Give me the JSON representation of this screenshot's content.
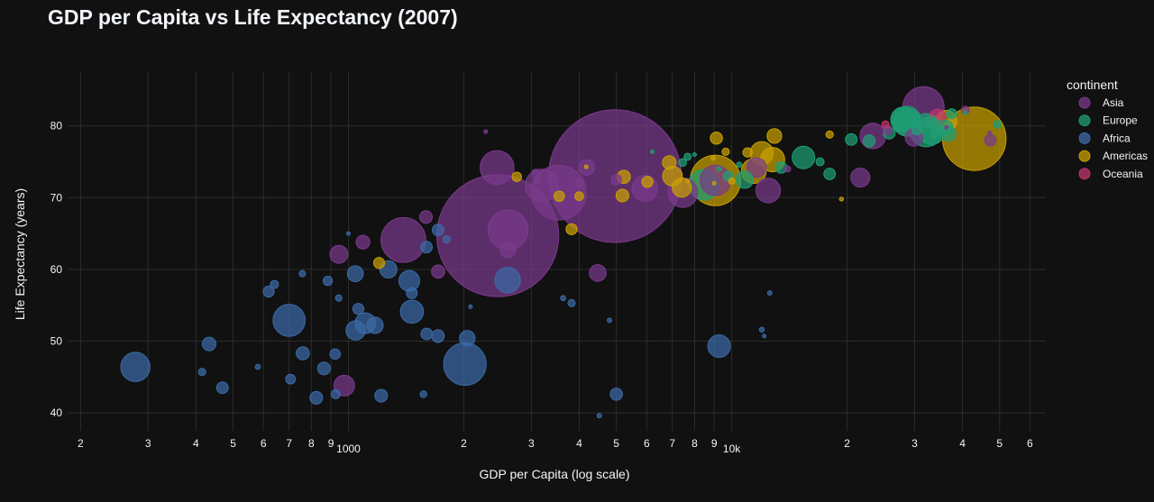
{
  "chart_data": {
    "type": "scatter",
    "subtype": "bubble",
    "title": "GDP per Capita vs Life Expectancy (2007)",
    "xlabel": "GDP per Capita (log scale)",
    "ylabel": "Life Expectancy (years)",
    "xscale": "log",
    "xlim": [
      185,
      66000
    ],
    "ylim": [
      37.5,
      87.5
    ],
    "grid": true,
    "legend_title": "continent",
    "legend_position": "top-right",
    "x_ticks": [
      {
        "value": 200,
        "label": "2"
      },
      {
        "value": 300,
        "label": "3"
      },
      {
        "value": 400,
        "label": "4"
      },
      {
        "value": 500,
        "label": "5"
      },
      {
        "value": 600,
        "label": "6"
      },
      {
        "value": 700,
        "label": "7"
      },
      {
        "value": 800,
        "label": "8"
      },
      {
        "value": 900,
        "label": "9"
      },
      {
        "value": 1000,
        "label": "1000",
        "major": true
      },
      {
        "value": 2000,
        "label": "2"
      },
      {
        "value": 3000,
        "label": "3"
      },
      {
        "value": 4000,
        "label": "4"
      },
      {
        "value": 5000,
        "label": "5"
      },
      {
        "value": 6000,
        "label": "6"
      },
      {
        "value": 7000,
        "label": "7"
      },
      {
        "value": 8000,
        "label": "8"
      },
      {
        "value": 9000,
        "label": "9"
      },
      {
        "value": 10000,
        "label": "10k",
        "major": true
      },
      {
        "value": 20000,
        "label": "2"
      },
      {
        "value": 30000,
        "label": "3"
      },
      {
        "value": 40000,
        "label": "4"
      },
      {
        "value": 50000,
        "label": "5"
      },
      {
        "value": 60000,
        "label": "6"
      }
    ],
    "y_ticks": [
      40,
      50,
      60,
      70,
      80
    ],
    "series": [
      {
        "name": "Asia",
        "color": "#7a3a8c",
        "points": [
          [
            4959,
            73.0,
            1319
          ],
          [
            2452,
            64.7,
            1110
          ],
          [
            2609,
            65.5,
            120
          ],
          [
            3541,
            70.7,
            224
          ],
          [
            3191,
            71.7,
            80
          ],
          [
            1391,
            64.1,
            150
          ],
          [
            2442,
            74.2,
            85
          ],
          [
            5937,
            71.3,
            50
          ],
          [
            7458,
            70.7,
            65
          ],
          [
            12451,
            71.0,
            45
          ],
          [
            31656,
            82.6,
            127
          ],
          [
            9065,
            72.4,
            70
          ],
          [
            11606,
            74.2,
            28
          ],
          [
            23348,
            78.6,
            49
          ],
          [
            2605,
            62.7,
            18
          ],
          [
            944,
            62.1,
            24
          ],
          [
            1091,
            63.8,
            14
          ],
          [
            1593,
            67.3,
            12
          ],
          [
            4471,
            59.5,
            21
          ],
          [
            2281,
            79.2,
            0.5
          ],
          [
            4186,
            74.2,
            18
          ],
          [
            21655,
            72.8,
            27
          ],
          [
            29884,
            78.4,
            23
          ],
          [
            1714,
            59.7,
            13
          ],
          [
            975,
            43.8,
            32
          ],
          [
            3096,
            72.4,
            2.9
          ],
          [
            4000,
            72.0,
            5
          ],
          [
            40675,
            82.2,
            4.6
          ],
          [
            25523,
            79.4,
            6.4
          ],
          [
            36319,
            79.8,
            1
          ],
          [
            14000,
            74.0,
            2.7
          ],
          [
            47307,
            78.0,
            10
          ],
          [
            47143,
            79.0,
            1
          ],
          [
            3081,
            73.4,
            5
          ],
          [
            5000,
            72.5,
            8
          ]
        ]
      },
      {
        "name": "Europe",
        "color": "#1f9e74",
        "points": [
          [
            32170,
            79.4,
            82
          ],
          [
            28570,
            80.7,
            64
          ],
          [
            33203,
            79.4,
            61
          ],
          [
            28718,
            80.5,
            58
          ],
          [
            8458,
            71.8,
            71
          ],
          [
            15390,
            75.6,
            38
          ],
          [
            27978,
            80.9,
            45
          ],
          [
            36126,
            79.8,
            16
          ],
          [
            33692,
            80.2,
            10
          ],
          [
            33207,
            80.6,
            8.2
          ],
          [
            37506,
            81.7,
            7.5
          ],
          [
            10808,
            72.5,
            22
          ],
          [
            9787,
            73.0,
            7.3
          ],
          [
            22833,
            77.9,
            10.7
          ],
          [
            20510,
            78.1,
            10.2
          ],
          [
            18009,
            73.3,
            10
          ],
          [
            25768,
            79.0,
            10.6
          ],
          [
            40676,
            81.8,
            0.3
          ],
          [
            36798,
            78.9,
            16.6
          ],
          [
            49357,
            80.2,
            4.6
          ],
          [
            33860,
            78.9,
            5.5
          ],
          [
            35278,
            79.3,
            5.2
          ],
          [
            30470,
            79.5,
            8.2
          ],
          [
            9253,
            74.0,
            1.5
          ],
          [
            7446,
            74.9,
            4.5
          ],
          [
            6205,
            76.4,
            0.7
          ],
          [
            7670,
            75.7,
            3.9
          ],
          [
            10461,
            74.6,
            2
          ],
          [
            13458,
            74.2,
            10
          ],
          [
            8000,
            76.0,
            0.6
          ],
          [
            17000,
            75.0,
            5
          ]
        ]
      },
      {
        "name": "Africa",
        "color": "#3b6aa6",
        "points": [
          [
            278,
            46.4,
            64
          ],
          [
            2013,
            46.8,
            135
          ],
          [
            700,
            52.9,
            77
          ],
          [
            2602,
            58.5,
            49
          ],
          [
            1464,
            54.1,
            40
          ],
          [
            9270,
            49.3,
            38
          ],
          [
            1441,
            58.4,
            32
          ],
          [
            1042,
            59.4,
            19
          ],
          [
            1107,
            52.5,
            32
          ],
          [
            1044,
            51.5,
            28
          ],
          [
            1271,
            60.0,
            22
          ],
          [
            1173,
            52.2,
            20
          ],
          [
            619,
            56.9,
            9
          ],
          [
            2042,
            50.4,
            18
          ],
          [
            863,
            46.2,
            12
          ],
          [
            824,
            42.1,
            12
          ],
          [
            1713,
            65.5,
            10
          ],
          [
            926,
            42.6,
            6
          ],
          [
            1598,
            63.1,
            10
          ],
          [
            1463,
            56.7,
            9
          ],
          [
            1600,
            51.0,
            10
          ],
          [
            5000,
            42.6,
            11
          ],
          [
            3820,
            55.3,
            4
          ],
          [
            12570,
            56.7,
            1.5
          ],
          [
            1217,
            42.4,
            12
          ],
          [
            433,
            49.6,
            14
          ],
          [
            469,
            43.5,
            10
          ],
          [
            1712,
            50.7,
            12
          ],
          [
            760,
            48.3,
            13
          ],
          [
            641,
            57.9,
            5
          ],
          [
            4797,
            52.9,
            1.5
          ],
          [
            415,
            45.7,
            4
          ],
          [
            1061,
            54.5,
            9
          ],
          [
            580,
            46.4,
            2
          ],
          [
            706,
            44.7,
            7
          ],
          [
            883,
            58.4,
            6.3
          ],
          [
            943,
            56.0,
            3.2
          ],
          [
            1569,
            42.6,
            3.3
          ],
          [
            4513,
            39.6,
            1.5
          ],
          [
            11977,
            51.6,
            1.8
          ],
          [
            12154,
            50.7,
            0.6
          ],
          [
            1803,
            64.2,
            4
          ],
          [
            758,
            59.4,
            3
          ],
          [
            923,
            48.2,
            8
          ],
          [
            2082,
            54.8,
            1
          ],
          [
            3632,
            56.0,
            2
          ],
          [
            1000,
            65.0,
            1
          ]
        ]
      },
      {
        "name": "Americas",
        "color": "#c9a000",
        "points": [
          [
            42952,
            78.2,
            301
          ],
          [
            9066,
            72.4,
            190
          ],
          [
            11978,
            76.2,
            40
          ],
          [
            36319,
            80.7,
            33
          ],
          [
            12779,
            75.3,
            44
          ],
          [
            7006,
            73.0,
            29
          ],
          [
            11416,
            73.7,
            46
          ],
          [
            5228,
            72.9,
            13
          ],
          [
            7408,
            71.4,
            27
          ],
          [
            3548,
            70.2,
            8
          ],
          [
            12922,
            78.6,
            16
          ],
          [
            9645,
            76.4,
            4.1
          ],
          [
            6025,
            72.2,
            9.3
          ],
          [
            4173,
            74.3,
            0.5
          ],
          [
            5186,
            70.3,
            12
          ],
          [
            3820,
            65.6,
            9
          ],
          [
            1202,
            60.9,
            9
          ],
          [
            2749,
            72.9,
            6.6
          ],
          [
            6873,
            74.9,
            14
          ],
          [
            9119,
            78.3,
            11
          ],
          [
            8948,
            75.5,
            1.3
          ],
          [
            11000,
            76.3,
            6.5
          ],
          [
            18009,
            78.8,
            4
          ],
          [
            10000,
            72.3,
            3
          ],
          [
            4000,
            70.2,
            5.6
          ],
          [
            7670,
            72.3,
            0.8
          ],
          [
            19329,
            69.8,
            1.1
          ],
          [
            9000,
            72.0,
            0.4
          ]
        ]
      },
      {
        "name": "Oceania",
        "color": "#c0336e",
        "points": [
          [
            34435,
            81.2,
            20
          ],
          [
            25185,
            80.2,
            4
          ]
        ]
      }
    ]
  }
}
